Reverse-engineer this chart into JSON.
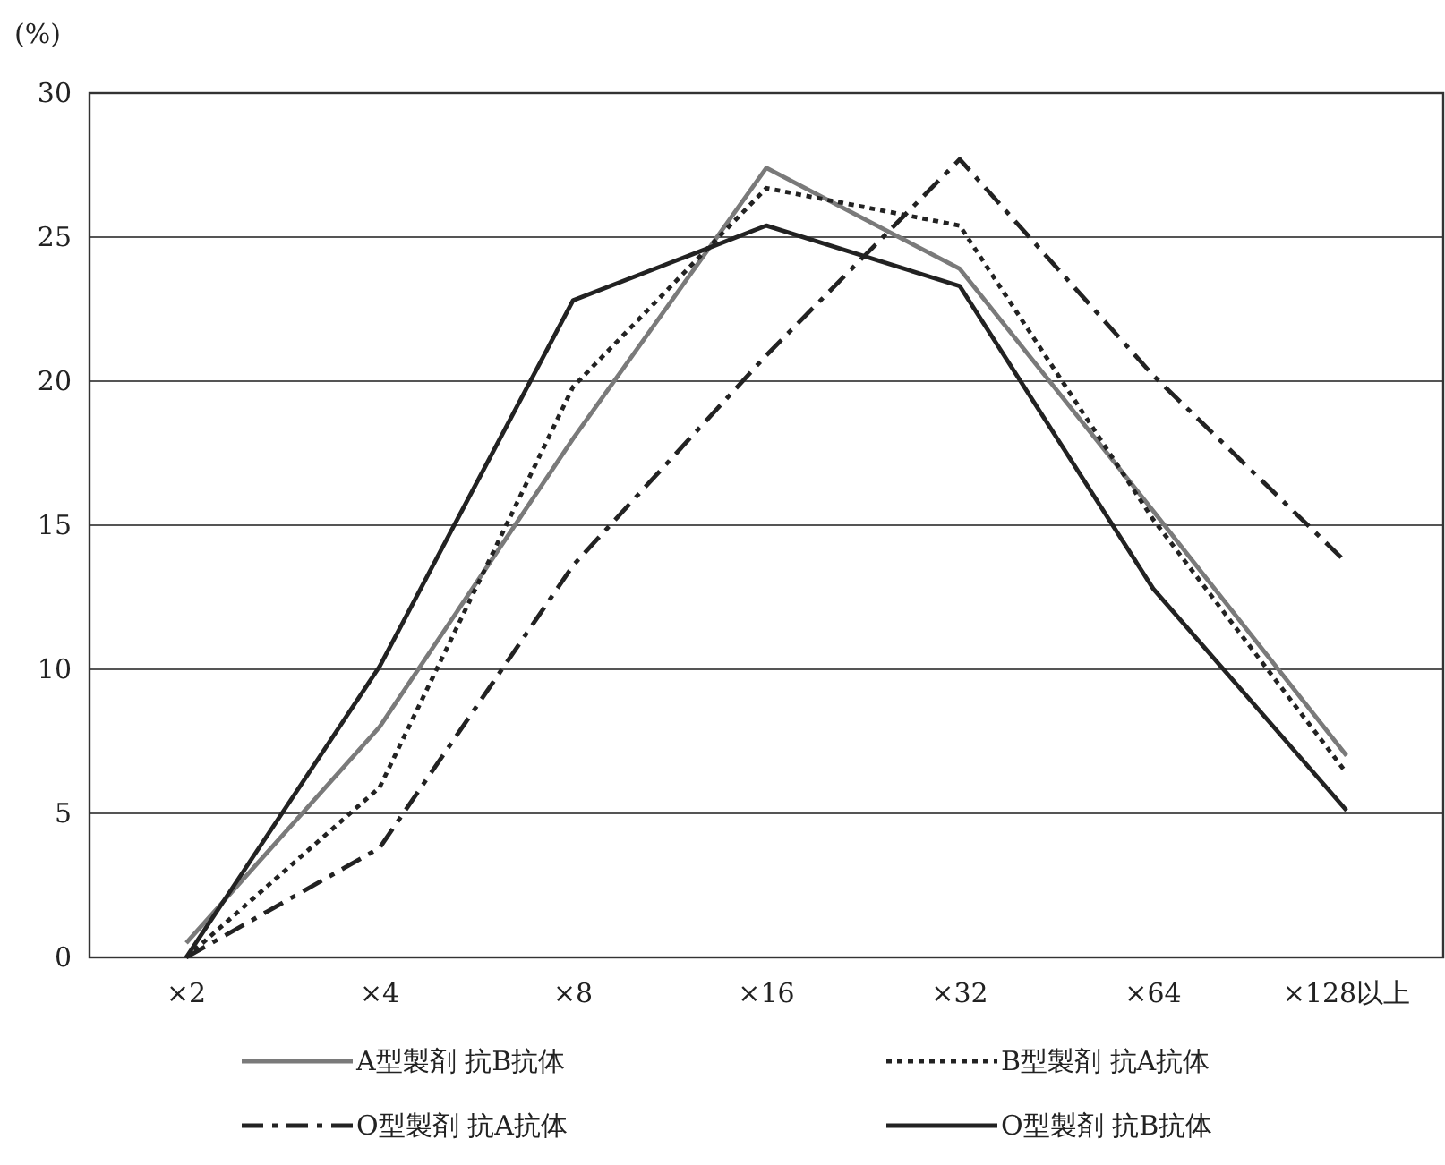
{
  "chart_data": {
    "type": "line",
    "ylabel": "(%)",
    "categories": [
      "×2",
      "×4",
      "×8",
      "×16",
      "×32",
      "×64",
      "×128以上"
    ],
    "series": [
      {
        "name": "A型製剤 抗B抗体",
        "color": "#7a7a7a",
        "line_style": "solid",
        "values": [
          0.5,
          8,
          18,
          27.4,
          23.9,
          15.5,
          7
        ]
      },
      {
        "name": "B型製剤 抗A抗体",
        "color": "#222222",
        "line_style": "dotted",
        "values": [
          0,
          5.9,
          19.8,
          26.7,
          25.4,
          15.2,
          6.4
        ]
      },
      {
        "name": "O型製剤 抗A抗体",
        "color": "#222222",
        "line_style": "dashdot",
        "values": [
          0,
          3.8,
          13.6,
          20.9,
          27.7,
          20.2,
          13.7
        ]
      },
      {
        "name": "O型製剤 抗B抗体",
        "color": "#222222",
        "line_style": "solid",
        "values": [
          0,
          10.1,
          22.8,
          25.4,
          23.3,
          12.8,
          5.1
        ]
      }
    ],
    "ylim": [
      0,
      30
    ],
    "yticks": [
      0,
      5,
      10,
      15,
      20,
      25,
      30
    ],
    "grid": "y",
    "legend": "bottom"
  }
}
